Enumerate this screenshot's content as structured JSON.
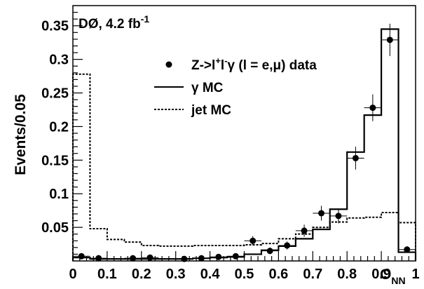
{
  "chart_data": {
    "type": "histogram",
    "annotation": {
      "main": "DØ, 4.2 fb",
      "sup": "-1"
    },
    "xlabel": {
      "main": "O",
      "sub": "NN"
    },
    "ylabel": "Events/0.05",
    "xlim": [
      0,
      1
    ],
    "ylim": [
      0,
      0.38
    ],
    "x_ticks": [
      "0",
      "0.1",
      "0.2",
      "0.3",
      "0.4",
      "0.5",
      "0.6",
      "0.7",
      "0.8",
      "0.9",
      "1"
    ],
    "y_ticks": [
      "0.05",
      "0.1",
      "0.15",
      "0.2",
      "0.25",
      "0.3",
      "0.35"
    ],
    "bin_edges": [
      0,
      0.05,
      0.1,
      0.15,
      0.2,
      0.25,
      0.3,
      0.35,
      0.4,
      0.45,
      0.5,
      0.55,
      0.6,
      0.65,
      0.7,
      0.75,
      0.8,
      0.85,
      0.9,
      0.95,
      1.0
    ],
    "legend": {
      "placement": "top-right",
      "entries": [
        {
          "style": "marker",
          "parts": [
            "Z->l",
            "+",
            "l",
            "-",
            "γ (l = e,μ) data"
          ]
        },
        {
          "style": "solid",
          "text": "γ MC"
        },
        {
          "style": "dashed",
          "text": "jet MC"
        }
      ]
    },
    "series": [
      {
        "style": "solid",
        "values": [
          0.005,
          0.003,
          0.003,
          0.003,
          0.003,
          0.003,
          0.003,
          0.004,
          0.005,
          0.006,
          0.01,
          0.016,
          0.022,
          0.033,
          0.047,
          0.077,
          0.162,
          0.217,
          0.345,
          0.013
        ]
      },
      {
        "style": "dashed",
        "values": [
          0.278,
          0.048,
          0.032,
          0.028,
          0.023,
          0.022,
          0.022,
          0.023,
          0.023,
          0.023,
          0.024,
          0.026,
          0.033,
          0.04,
          0.05,
          0.058,
          0.064,
          0.065,
          0.072,
          0.057
        ]
      },
      {
        "style": "points",
        "x": [
          0.025,
          0.075,
          0.175,
          0.225,
          0.325,
          0.375,
          0.425,
          0.475,
          0.525,
          0.575,
          0.625,
          0.675,
          0.725,
          0.775,
          0.825,
          0.875,
          0.925,
          0.975
        ],
        "y": [
          0.007,
          0.004,
          0.004,
          0.005,
          0.003,
          0.004,
          0.006,
          0.007,
          0.03,
          0.015,
          0.023,
          0.045,
          0.071,
          0.067,
          0.153,
          0.228,
          0.329,
          0.017
        ],
        "yerr": [
          0.003,
          0.002,
          0.002,
          0.002,
          0.002,
          0.002,
          0.003,
          0.003,
          0.007,
          0.005,
          0.006,
          0.009,
          0.011,
          0.011,
          0.017,
          0.02,
          0.024,
          0.005
        ]
      }
    ]
  }
}
